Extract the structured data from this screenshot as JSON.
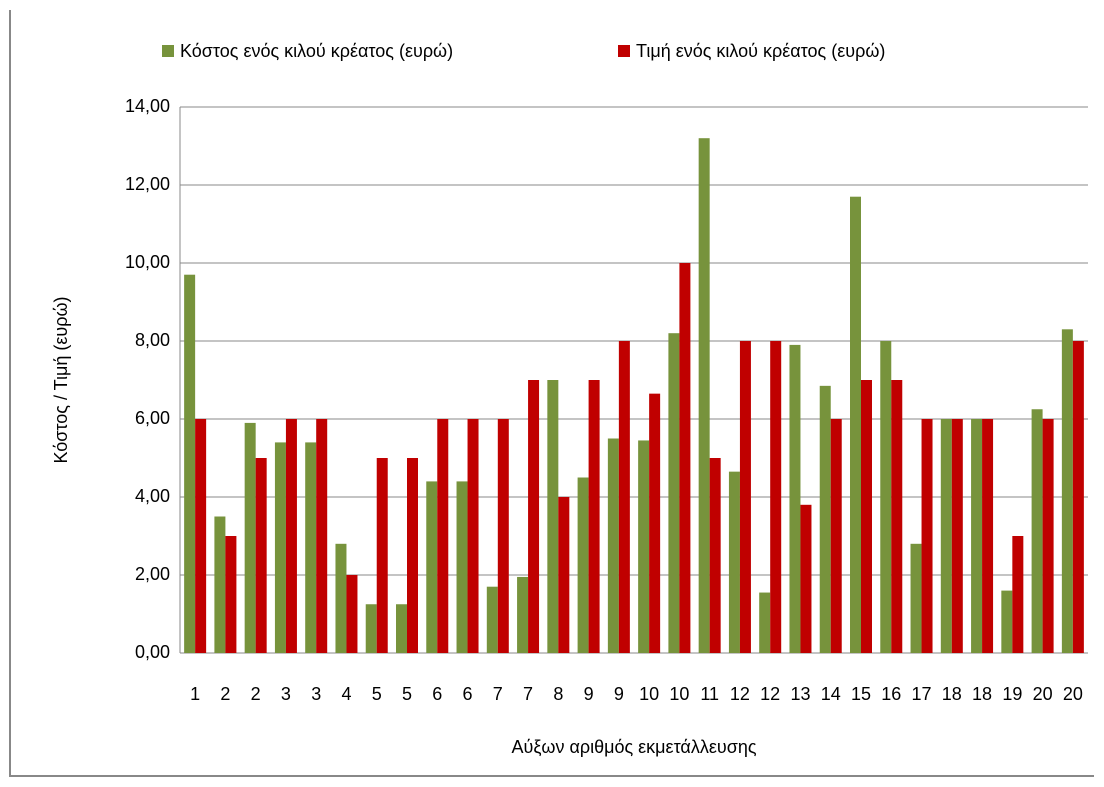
{
  "chart_data": {
    "type": "bar",
    "categories": [
      "1",
      "2",
      "2",
      "3",
      "3",
      "4",
      "5",
      "5",
      "6",
      "6",
      "7",
      "7",
      "8",
      "9",
      "9",
      "10",
      "10",
      "11",
      "12",
      "12",
      "13",
      "14",
      "15",
      "16",
      "17",
      "18",
      "18",
      "19",
      "20",
      "20"
    ],
    "series": [
      {
        "name": "Κόστος ενός κιλού κρέατος (ευρώ)",
        "color": "#77933c",
        "values": [
          9.7,
          3.5,
          5.9,
          5.4,
          5.4,
          2.8,
          1.25,
          1.25,
          4.4,
          4.4,
          1.7,
          1.95,
          7.0,
          4.5,
          5.5,
          5.45,
          8.2,
          13.2,
          4.65,
          1.55,
          7.9,
          6.85,
          11.7,
          8.0,
          2.8,
          6.0,
          6.0,
          1.6,
          6.25,
          8.3
        ]
      },
      {
        "name": "Τιμή ενός κιλού κρέατος (ευρώ)",
        "color": "#c00000",
        "values": [
          6,
          3,
          5,
          6,
          6,
          2,
          5,
          5,
          6,
          6,
          6,
          7,
          4,
          7,
          8,
          6.65,
          10,
          5,
          8,
          8,
          3.8,
          6,
          7,
          7,
          6,
          6,
          6,
          3,
          6,
          8
        ]
      }
    ],
    "y_label": "Κόστος / Τιμή (ευρώ)",
    "x_label": "Αύξων αριθμός εκμετάλλευσης",
    "ylim": [
      0,
      14
    ],
    "yticks": [
      {
        "value": 0,
        "label": "0,00"
      },
      {
        "value": 2,
        "label": "2,00"
      },
      {
        "value": 4,
        "label": "4,00"
      },
      {
        "value": 6,
        "label": "6,00"
      },
      {
        "value": 8,
        "label": "8,00"
      },
      {
        "value": 10,
        "label": "10,00"
      },
      {
        "value": 12,
        "label": "12,00"
      },
      {
        "value": 14,
        "label": "14,00"
      }
    ],
    "grid": true,
    "legend": "top"
  }
}
